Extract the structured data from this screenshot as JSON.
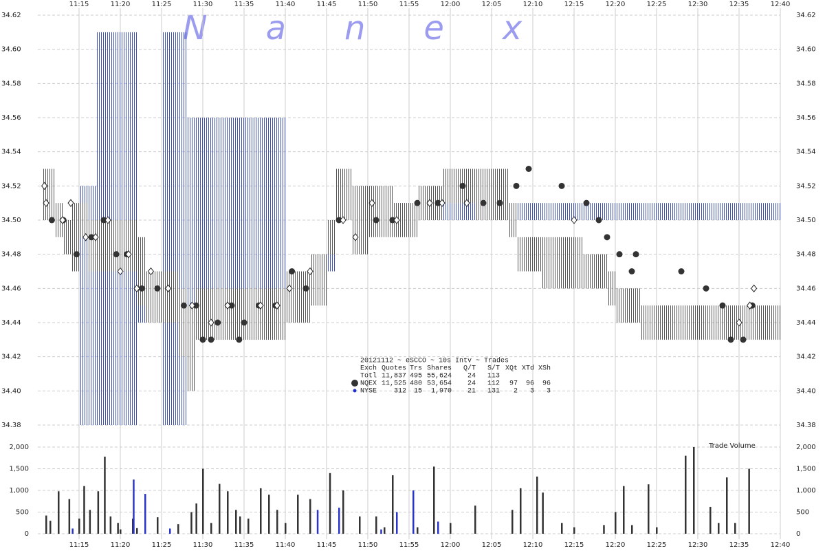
{
  "chart_data": {
    "type": "tick-chart",
    "watermark": "Nanex",
    "xlim": [
      670,
      760
    ],
    "xticks": [
      {
        "value": 675,
        "label": "11:15"
      },
      {
        "value": 680,
        "label": "11:20"
      },
      {
        "value": 685,
        "label": "11:25"
      },
      {
        "value": 690,
        "label": "11:30"
      },
      {
        "value": 695,
        "label": "11:35"
      },
      {
        "value": 700,
        "label": "11:40"
      },
      {
        "value": 705,
        "label": "11:45"
      },
      {
        "value": 710,
        "label": "11:50"
      },
      {
        "value": 715,
        "label": "11:55"
      },
      {
        "value": 720,
        "label": "12:00"
      },
      {
        "value": 725,
        "label": "12:05"
      },
      {
        "value": 730,
        "label": "12:10"
      },
      {
        "value": 735,
        "label": "12:15"
      },
      {
        "value": 740,
        "label": "12:20"
      },
      {
        "value": 745,
        "label": "12:25"
      },
      {
        "value": 750,
        "label": "12:30"
      },
      {
        "value": 755,
        "label": "12:35"
      },
      {
        "value": 760,
        "label": "12:40"
      }
    ],
    "ylim": [
      34.38,
      34.62
    ],
    "yticks": [
      34.38,
      {
        "value": 34.4,
        "label": "34.40"
      },
      34.42,
      34.44,
      34.46,
      34.48,
      {
        "value": 34.5,
        "label": "34.50"
      },
      34.52,
      34.54,
      34.56,
      34.58,
      {
        "value": 34.6,
        "label": "34.60"
      },
      34.62
    ],
    "bands": [
      {
        "color": "#3d4fb8",
        "x_start": [
          675,
          677,
          682,
          685,
          688,
          700,
          705,
          706,
          707,
          711
        ],
        "x_end": [
          677,
          682,
          685,
          688,
          700,
          705,
          706,
          707,
          711,
          760
        ],
        "low": [
          34.38,
          34.38,
          34.44,
          34.38,
          34.43,
          34.45,
          34.47,
          34.5,
          34.51,
          34.5
        ],
        "high": [
          34.52,
          34.61,
          34.46,
          34.61,
          34.56,
          34.47,
          34.48,
          34.51,
          34.52,
          34.51
        ]
      },
      {
        "color": "#555555",
        "x_start": [
          670.5,
          672,
          673,
          674,
          675,
          676,
          682,
          683,
          687,
          688,
          689,
          700,
          703,
          705,
          706,
          708,
          710,
          713,
          716,
          719,
          723,
          727,
          728,
          731,
          736,
          739,
          740,
          743
        ],
        "x_end": [
          672,
          673,
          674,
          675,
          676,
          682,
          683,
          687,
          688,
          689,
          700,
          703,
          705,
          706,
          708,
          710,
          713,
          716,
          719,
          723,
          727,
          728,
          731,
          736,
          739,
          740,
          743,
          760
        ],
        "low": [
          34.5,
          34.49,
          34.48,
          34.47,
          34.49,
          34.47,
          34.45,
          34.44,
          34.42,
          34.4,
          34.43,
          34.44,
          34.45,
          34.48,
          34.5,
          34.48,
          34.49,
          34.49,
          34.5,
          34.51,
          34.5,
          34.49,
          34.47,
          34.46,
          34.46,
          34.45,
          34.44,
          34.43
        ],
        "high": [
          34.53,
          34.51,
          34.5,
          34.51,
          34.51,
          34.5,
          34.49,
          34.47,
          34.46,
          34.45,
          34.46,
          34.47,
          34.48,
          34.5,
          34.53,
          34.52,
          34.52,
          34.51,
          34.52,
          34.53,
          34.53,
          34.51,
          34.49,
          34.49,
          34.48,
          34.47,
          34.46,
          34.45
        ]
      }
    ],
    "trades": [
      {
        "name": "NQEX",
        "color": "#333333",
        "marker": "circle",
        "stats": [
          "11,525",
          "480",
          "53,654",
          "24",
          "112",
          "97",
          "96",
          "96"
        ],
        "x": [
          671.7,
          673.1,
          674.7,
          676.5,
          678,
          679.5,
          680.8,
          682.6,
          684.5,
          687.7,
          689.2,
          690,
          691,
          691.8,
          693.5,
          694.4,
          695,
          696.8,
          698.8,
          700.8,
          702.5,
          706.5,
          711,
          713,
          716,
          718.5,
          721.5,
          724,
          726,
          728,
          729.5,
          733.5,
          736.5,
          738,
          739,
          740.5,
          742,
          742.5,
          748,
          751,
          753,
          754,
          755.5,
          756.6
        ],
        "values": [
          34.5,
          34.5,
          34.48,
          34.49,
          34.5,
          34.48,
          34.48,
          34.46,
          34.46,
          34.45,
          34.45,
          34.43,
          34.43,
          34.44,
          34.45,
          34.43,
          34.44,
          34.45,
          34.45,
          34.47,
          34.46,
          34.5,
          34.5,
          34.5,
          34.51,
          34.51,
          34.52,
          34.51,
          34.51,
          34.52,
          34.53,
          34.52,
          34.51,
          34.5,
          34.49,
          34.48,
          34.47,
          34.48,
          34.47,
          34.46,
          34.45,
          34.43,
          34.43,
          34.45
        ]
      },
      {
        "name": "NYSE",
        "color": "#2230c8",
        "marker": "diamond",
        "stats": [
          "312",
          "15",
          "1,970",
          "21",
          "131",
          "2",
          "3",
          "3"
        ],
        "x": [
          670.8,
          671,
          673,
          674,
          675.8,
          677,
          678.5,
          680,
          681,
          682,
          683.7,
          685.8,
          688.7,
          691,
          693,
          697,
          699,
          700.5,
          703,
          707,
          708.5,
          710.5,
          713.5,
          717.5,
          719,
          722,
          735,
          755,
          756.3,
          756.8
        ],
        "values": [
          34.52,
          34.51,
          34.5,
          34.51,
          34.49,
          34.49,
          34.5,
          34.47,
          34.48,
          34.46,
          34.47,
          34.46,
          34.45,
          34.44,
          34.45,
          34.45,
          34.45,
          34.46,
          34.47,
          34.5,
          34.49,
          34.51,
          34.5,
          34.51,
          34.51,
          34.51,
          34.5,
          34.44,
          34.45,
          34.46
        ]
      }
    ],
    "stats_title": "20121112 ~ eSCCO ~ 10s Intv ~ Trades",
    "stats_header": [
      "Exch",
      "Quotes",
      "Trs",
      "Shares",
      "Q/T",
      "S/T",
      "XQt",
      "XTd",
      "XSh"
    ],
    "stats_total": [
      "Totl",
      "11,837",
      "495",
      "55,624",
      "24",
      "113"
    ],
    "volume_label": "Trade Volume",
    "vlim": [
      0,
      2000
    ],
    "vticks": [
      0,
      500,
      {
        "value": 1000,
        "label": "1,000"
      },
      {
        "value": 1500,
        "label": "1,500"
      },
      {
        "value": 2000,
        "label": "2,000"
      }
    ],
    "volume": [
      {
        "color": "#333333",
        "x": [
          671,
          671.5,
          672.5,
          673.8,
          675,
          675.6,
          676.3,
          677.3,
          678.1,
          678.8,
          679.7,
          680,
          681.5,
          682,
          684.5,
          687,
          688.6,
          689.2,
          690,
          691,
          692,
          693,
          694,
          694.5,
          695.5,
          697,
          698,
          699,
          700,
          701.5,
          703,
          705.4,
          707,
          709,
          711,
          712,
          713,
          715.5,
          716,
          718,
          720,
          723,
          727.5,
          728.5,
          730.5,
          731.2,
          733.5,
          735,
          738.6,
          740,
          741,
          742,
          744,
          745,
          748.5,
          749.5,
          751.5,
          752.5,
          753.5,
          754.5,
          756.2
        ],
        "values": [
          420,
          300,
          980,
          800,
          350,
          1100,
          550,
          980,
          1780,
          400,
          250,
          100,
          350,
          130,
          380,
          220,
          500,
          700,
          1500,
          250,
          1150,
          980,
          550,
          400,
          350,
          1050,
          900,
          550,
          250,
          900,
          800,
          1400,
          1000,
          400,
          400,
          150,
          1350,
          700,
          150,
          1550,
          250,
          650,
          550,
          1050,
          1320,
          950,
          250,
          150,
          200,
          500,
          1100,
          200,
          1140,
          150,
          1800,
          2000,
          620,
          250,
          1300,
          250,
          1500
        ]
      },
      {
        "color": "#2a35c8",
        "x": [
          674.2,
          681.6,
          683,
          686,
          703.9,
          706.5,
          711.6,
          713.5,
          715.5,
          718.5
        ],
        "values": [
          120,
          1250,
          920,
          120,
          550,
          600,
          100,
          500,
          1000,
          280
        ]
      }
    ]
  }
}
